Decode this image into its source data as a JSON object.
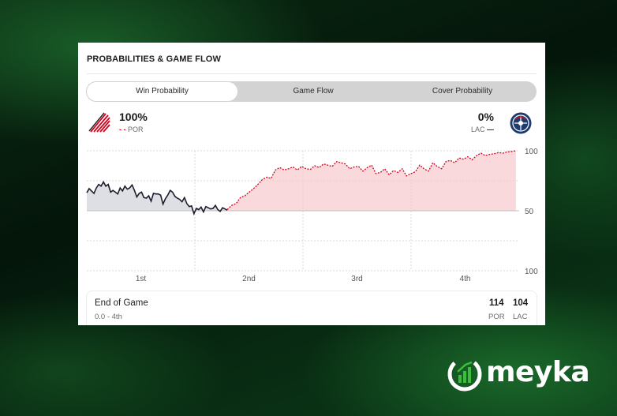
{
  "widget": {
    "title": "PROBABILITIES & GAME FLOW",
    "tabs": [
      {
        "label": "Win Probability",
        "active": true
      },
      {
        "label": "Game Flow",
        "active": false
      },
      {
        "label": "Cover Probability",
        "active": false
      }
    ]
  },
  "teams": {
    "home": {
      "abbr": "POR",
      "pct": "100%",
      "line_style": "- -",
      "color": "#d6001c",
      "logo": "trail-blazers-logo-icon"
    },
    "away": {
      "abbr": "LAC",
      "pct": "0%",
      "line_style": "—",
      "color": "#1d1d2e",
      "logo": "clippers-logo-icon"
    }
  },
  "chart_data": {
    "type": "line",
    "y_labels": [
      "100",
      "50",
      "100"
    ],
    "x_labels": [
      "1st",
      "2nd",
      "3rd",
      "4th"
    ],
    "grid": true,
    "series": [
      {
        "name": "LAC",
        "color": "#1d1d2e",
        "period_range": [
          0,
          1.3
        ],
        "values": [
          30,
          37,
          33,
          29,
          38,
          44,
          41,
          48,
          41,
          44,
          31,
          34,
          31,
          28,
          38,
          33,
          41,
          36,
          38,
          43,
          34,
          23,
          29,
          31,
          22,
          21,
          25,
          16,
          29,
          28,
          28,
          26,
          11,
          20,
          26,
          34,
          31,
          24,
          21,
          19,
          15,
          22,
          12,
          7,
          8,
          -5,
          4,
          2,
          6,
          -2,
          7,
          5,
          3,
          4,
          9,
          2,
          -1,
          5,
          3,
          1
        ]
      },
      {
        "name": "POR",
        "color": "#d6001c",
        "period_range": [
          1.3,
          3.97
        ],
        "values": [
          2,
          9,
          12,
          22,
          25,
          31,
          37,
          44,
          52,
          56,
          54,
          68,
          72,
          68,
          70,
          73,
          68,
          74,
          70,
          69,
          75,
          72,
          78,
          76,
          74,
          82,
          80,
          78,
          70,
          73,
          74,
          66,
          72,
          76,
          62,
          64,
          70,
          60,
          67,
          64,
          70,
          58,
          62,
          65,
          76,
          70,
          66,
          80,
          74,
          70,
          82,
          84,
          80,
          88,
          86,
          90,
          85,
          92,
          96,
          92,
          94,
          95,
          97,
          96,
          98,
          99,
          100
        ]
      }
    ]
  },
  "footer": {
    "status": "End of Game",
    "detail": "0.0 - 4th",
    "scores": [
      {
        "value": "114",
        "label": "POR"
      },
      {
        "value": "104",
        "label": "LAC"
      }
    ]
  },
  "brand": {
    "name": "meyka",
    "accent": "#3bbf3b"
  }
}
